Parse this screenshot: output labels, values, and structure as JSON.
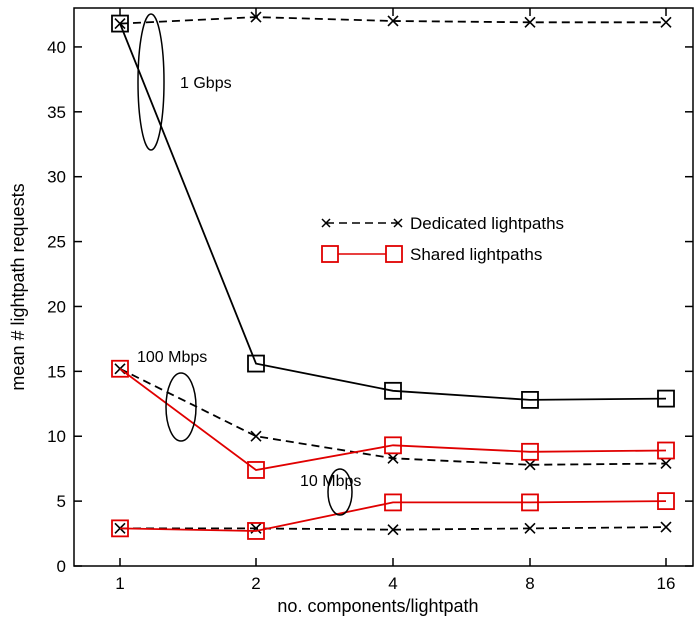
{
  "chart_data": {
    "type": "line",
    "title": "",
    "xlabel": "no. components/lightpath",
    "ylabel": "mean # lightpath requests",
    "categories": [
      "1",
      "2",
      "4",
      "8",
      "16"
    ],
    "ylim": [
      0,
      43
    ],
    "yticks": [
      0,
      5,
      10,
      15,
      20,
      25,
      30,
      35,
      40
    ],
    "grid": false,
    "legend_position": "center-right",
    "legend": [
      {
        "label": "Dedicated lightpaths",
        "style": "dashed",
        "marker": "x",
        "color": "#000000"
      },
      {
        "label": "Shared lightpaths",
        "style": "solid",
        "marker": "square",
        "color": "#e00000"
      }
    ],
    "series": [
      {
        "group": "1 Gbps",
        "type": "dedicated",
        "color": "#000000",
        "values": [
          41.8,
          42.3,
          42.0,
          41.9,
          41.9
        ]
      },
      {
        "group": "1 Gbps",
        "type": "shared",
        "color": "#000000",
        "values": [
          41.8,
          15.6,
          13.5,
          12.8,
          12.9
        ]
      },
      {
        "group": "100 Mbps",
        "type": "dedicated",
        "color": "#000000",
        "values": [
          15.2,
          10.0,
          8.3,
          7.8,
          7.9
        ]
      },
      {
        "group": "100 Mbps",
        "type": "shared",
        "color": "#e00000",
        "values": [
          15.2,
          7.4,
          9.3,
          8.8,
          8.9
        ]
      },
      {
        "group": "10 Mbps",
        "type": "dedicated",
        "color": "#000000",
        "values": [
          2.9,
          2.9,
          2.8,
          2.9,
          3.0
        ]
      },
      {
        "group": "10 Mbps",
        "type": "shared",
        "color": "#e00000",
        "values": [
          2.9,
          2.7,
          4.9,
          4.9,
          5.0
        ]
      }
    ],
    "annotations": [
      {
        "text": "1 Gbps",
        "near": "1 Gbps curves, x between 1 and 2"
      },
      {
        "text": "100 Mbps",
        "near": "100 Mbps curves, x between 1 and 2"
      },
      {
        "text": "10 Mbps",
        "near": "10 Mbps curves, x between 2 and 4"
      }
    ]
  }
}
